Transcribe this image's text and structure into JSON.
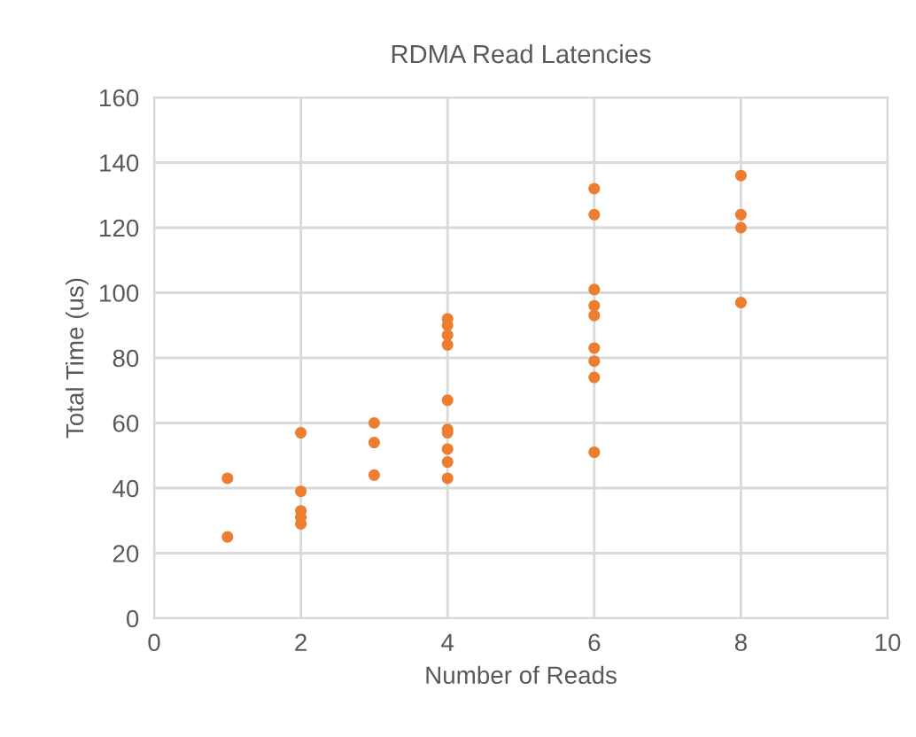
{
  "chart_data": {
    "type": "scatter",
    "title": "RDMA Read Latencies",
    "xlabel": "Number of Reads",
    "ylabel": "Total Time (us)",
    "x": [
      1,
      1,
      2,
      2,
      2,
      2,
      2,
      3,
      3,
      3,
      4,
      4,
      4,
      4,
      4,
      4,
      4,
      4,
      4,
      4,
      6,
      6,
      6,
      6,
      6,
      6,
      6,
      6,
      6,
      8,
      8,
      8,
      8
    ],
    "series": [
      {
        "color": "#ed7d31",
        "values": [
          43,
          25,
          57,
          39,
          33,
          31,
          29,
          60,
          54,
          44,
          92,
          90,
          87,
          84,
          67,
          58,
          57,
          52,
          48,
          43,
          132,
          124,
          101,
          96,
          93,
          83,
          79,
          74,
          51,
          136,
          124,
          120,
          97
        ]
      }
    ],
    "xlim": [
      0,
      10
    ],
    "xticks": [
      0,
      2,
      4,
      6,
      8,
      10
    ],
    "ylim": [
      0,
      160
    ],
    "yticks": [
      0,
      20,
      40,
      60,
      80,
      100,
      120,
      140,
      160
    ],
    "grid": true,
    "marker": "circle"
  }
}
